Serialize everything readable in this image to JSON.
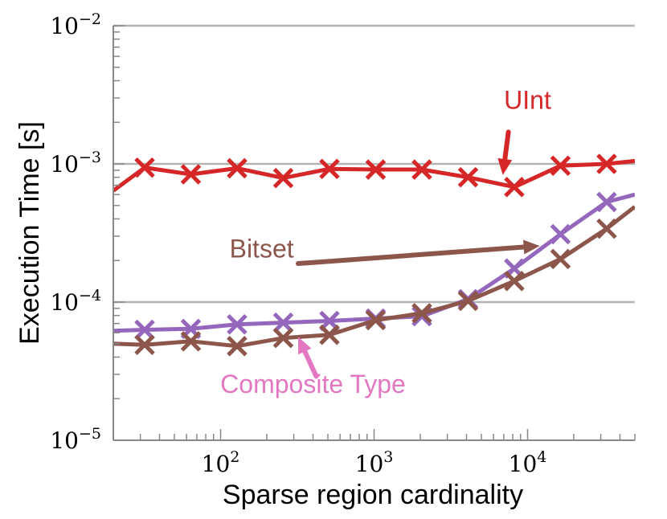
{
  "chart_data": {
    "type": "line",
    "xscale": "log",
    "yscale": "log",
    "xlabel": "Sparse region cardinality",
    "ylabel": "Execution Time [s]",
    "xlim": [
      20,
      50000
    ],
    "ylim": [
      1e-05,
      0.01
    ],
    "x_ticks": [
      {
        "value": 100,
        "base": "10",
        "exp": "2"
      },
      {
        "value": 1000,
        "base": "10",
        "exp": "3"
      },
      {
        "value": 10000,
        "base": "10",
        "exp": "4"
      }
    ],
    "y_ticks": [
      {
        "value": 1e-05,
        "base": "10",
        "exp": "−5"
      },
      {
        "value": 0.0001,
        "base": "10",
        "exp": "−4"
      },
      {
        "value": 0.001,
        "base": "10",
        "exp": "−3"
      },
      {
        "value": 0.01,
        "base": "10",
        "exp": "−2"
      }
    ],
    "gridlines_y": [
      0.0001,
      0.001,
      0.01
    ],
    "series": [
      {
        "name": "UInt",
        "color": "#d62728",
        "x": [
          20,
          32,
          64,
          128,
          256,
          512,
          1024,
          2048,
          4096,
          8192,
          16384,
          32768,
          50000
        ],
        "y": [
          0.00064,
          0.00094,
          0.00084,
          0.00093,
          0.00079,
          0.00092,
          0.00091,
          0.00091,
          0.0008,
          0.00068,
          0.00097,
          0.001,
          0.00105
        ],
        "marker_from": 1,
        "marker_to": 11
      },
      {
        "name": "Composite Type",
        "color": "#9467bd",
        "x": [
          20,
          32,
          64,
          128,
          256,
          512,
          1024,
          2048,
          4096,
          8192,
          16384,
          32768,
          50000
        ],
        "y": [
          6.2e-05,
          6.3e-05,
          6.4e-05,
          6.9e-05,
          7.1e-05,
          7.3e-05,
          7.6e-05,
          7.9e-05,
          0.000105,
          0.000175,
          0.00031,
          0.00053,
          0.0006
        ],
        "marker_from": 1,
        "marker_to": 11
      },
      {
        "name": "Bitset",
        "color": "#8c564b",
        "x": [
          20,
          32,
          64,
          128,
          256,
          512,
          1024,
          2048,
          4096,
          8192,
          16384,
          32768,
          50000
        ],
        "y": [
          5e-05,
          4.9e-05,
          5.2e-05,
          4.8e-05,
          5.5e-05,
          5.8e-05,
          7.4e-05,
          8.3e-05,
          0.000102,
          0.000142,
          0.000205,
          0.00034,
          0.00049
        ],
        "marker_from": 1,
        "marker_to": 11
      }
    ],
    "annotations": [
      {
        "text": "UInt",
        "color": "#d62728",
        "anchor": "middle",
        "text_at": [
          10000,
          0.0025
        ],
        "arrow_from": [
          7500,
          0.0017
        ],
        "arrow_to": [
          6900,
          0.00083
        ]
      },
      {
        "text": "Bitset",
        "color": "#8c564b",
        "anchor": "end",
        "text_at": [
          300,
          0.00021
        ],
        "arrow_from": [
          320,
          0.00019
        ],
        "arrow_to": [
          12000,
          0.000255
        ]
      },
      {
        "text": "Composite Type",
        "color": "#e377c2",
        "anchor": "middle",
        "text_at": [
          400,
          2.2e-05
        ],
        "arrow_from": [
          420,
          2.9e-05
        ],
        "arrow_to": [
          320,
          5.6e-05
        ]
      }
    ]
  }
}
